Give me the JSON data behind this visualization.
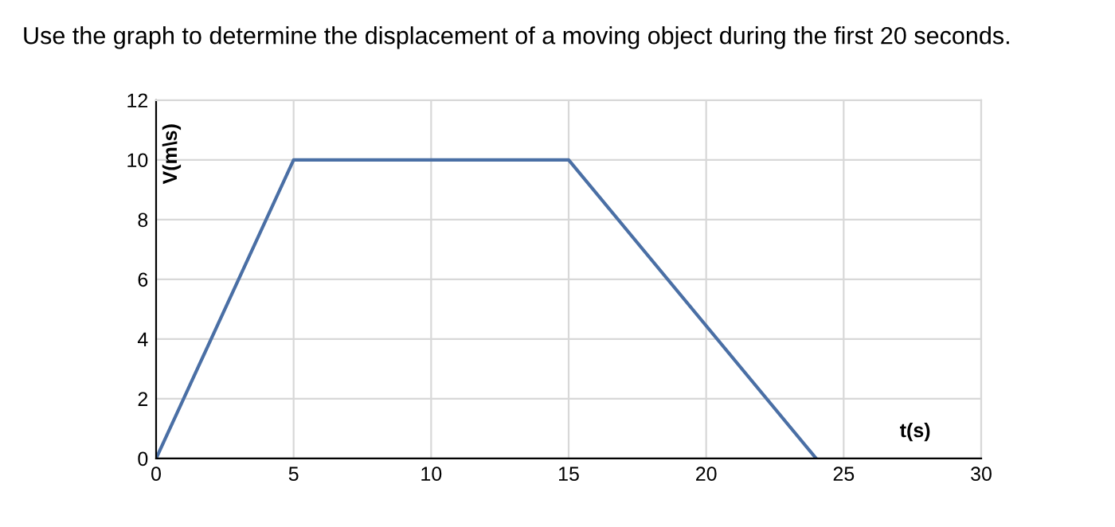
{
  "chart_data": {
    "type": "line",
    "title": "Use the graph to determine the displacement of a moving object during the first 20 seconds.",
    "xlabel": "t(s)",
    "ylabel": "V(m\\s)",
    "series": [
      {
        "color": "#4a6fa5",
        "x": [
          0,
          5,
          15,
          24
        ],
        "values": [
          0,
          10,
          10,
          0
        ]
      }
    ],
    "xlim": [
      0,
      30
    ],
    "ylim": [
      0,
      12
    ],
    "xticks": [
      0,
      5,
      10,
      15,
      20,
      25,
      30
    ],
    "yticks": [
      0,
      2,
      4,
      6,
      8,
      10,
      12
    ],
    "grid": true,
    "marker": "none",
    "line_style": "solid",
    "legend": false
  }
}
